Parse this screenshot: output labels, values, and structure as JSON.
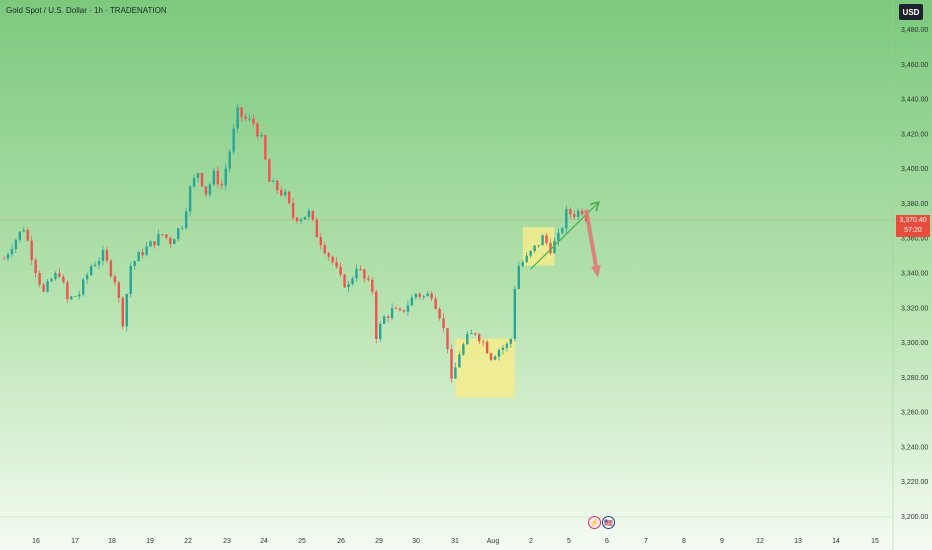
{
  "header": {
    "symbol_title": "Gold Spot / U.S. Dollar · 1h · TRADENATION",
    "currency_button": "USD"
  },
  "price_tag": {
    "price": "3,370.40",
    "countdown": "57:20"
  },
  "colors": {
    "up": "#26a69a",
    "down": "#ef5350",
    "highlight": "#f4ec8c",
    "trend_arrow": "#4caf50",
    "forecast_arrow": "#e57373",
    "price_line": "#e88a7a"
  },
  "events": [
    {
      "name": "earnings-icon",
      "glyph": "⚡"
    },
    {
      "name": "us-flag-icon",
      "glyph": "🇺🇸"
    }
  ],
  "chart_data": {
    "type": "candlestick",
    "y_axis": {
      "range": [
        3200,
        3480
      ],
      "ticks": [
        "3,480.00",
        "3,460.00",
        "3,440.00",
        "3,420.00",
        "3,400.00",
        "3,380.00",
        "3,360.00",
        "3,340.00",
        "3,320.00",
        "3,300.00",
        "3,280.00",
        "3,260.00",
        "3,240.00",
        "3,220.00",
        "3,200.00"
      ]
    },
    "x_axis": {
      "ticks": [
        "16",
        "17",
        "18",
        "19",
        "22",
        "23",
        "24",
        "25",
        "26",
        "29",
        "30",
        "31",
        "Aug",
        "2",
        "5",
        "6",
        "7",
        "8",
        "9",
        "12",
        "13",
        "14",
        "15"
      ]
    },
    "current_price": 3370.4,
    "price_path": [
      [
        0,
        3348
      ],
      [
        2,
        3356
      ],
      [
        5,
        3366
      ],
      [
        8,
        3342
      ],
      [
        10,
        3328
      ],
      [
        12,
        3336
      ],
      [
        14,
        3340
      ],
      [
        16,
        3324
      ],
      [
        19,
        3328
      ],
      [
        22,
        3344
      ],
      [
        25,
        3350
      ],
      [
        28,
        3336
      ],
      [
        30,
        3312
      ],
      [
        32,
        3344
      ],
      [
        35,
        3352
      ],
      [
        38,
        3358
      ],
      [
        40,
        3362
      ],
      [
        42,
        3358
      ],
      [
        45,
        3368
      ],
      [
        47,
        3388
      ],
      [
        49,
        3398
      ],
      [
        51,
        3386
      ],
      [
        53,
        3396
      ],
      [
        55,
        3390
      ],
      [
        57,
        3410
      ],
      [
        59,
        3432
      ],
      [
        61,
        3428
      ],
      [
        63,
        3426
      ],
      [
        65,
        3416
      ],
      [
        67,
        3392
      ],
      [
        69,
        3388
      ],
      [
        71,
        3384
      ],
      [
        73,
        3372
      ],
      [
        75,
        3372
      ],
      [
        77,
        3374
      ],
      [
        79,
        3362
      ],
      [
        81,
        3354
      ],
      [
        83,
        3346
      ],
      [
        85,
        3336
      ],
      [
        87,
        3332
      ],
      [
        89,
        3344
      ],
      [
        91,
        3336
      ],
      [
        93,
        3330
      ],
      [
        94,
        3304
      ],
      [
        96,
        3314
      ],
      [
        98,
        3318
      ],
      [
        100,
        3316
      ],
      [
        102,
        3322
      ],
      [
        104,
        3328
      ],
      [
        106,
        3326
      ],
      [
        108,
        3328
      ],
      [
        110,
        3316
      ],
      [
        112,
        3298
      ],
      [
        113,
        3276
      ],
      [
        115,
        3294
      ],
      [
        117,
        3302
      ],
      [
        119,
        3306
      ],
      [
        121,
        3300
      ],
      [
        123,
        3292
      ],
      [
        125,
        3296
      ],
      [
        127,
        3298
      ],
      [
        128,
        3302
      ],
      [
        129,
        3332
      ],
      [
        130,
        3344
      ],
      [
        132,
        3348
      ],
      [
        134,
        3354
      ],
      [
        136,
        3360
      ],
      [
        138,
        3354
      ],
      [
        140,
        3360
      ],
      [
        142,
        3374
      ],
      [
        144,
        3374
      ],
      [
        146,
        3376
      ],
      [
        147,
        3372
      ]
    ],
    "highlight_zones": [
      {
        "x_from": 114,
        "x_to": 129,
        "y_from": 3268,
        "y_to": 3302
      },
      {
        "x_from": 131,
        "x_to": 139,
        "y_from": 3344,
        "y_to": 3366
      }
    ],
    "trend_arrow": {
      "from": [
        133,
        3342
      ],
      "to": [
        150,
        3380
      ]
    },
    "forecast_arrow": {
      "from": [
        147,
        3376
      ],
      "to": [
        150,
        3337
      ]
    }
  }
}
